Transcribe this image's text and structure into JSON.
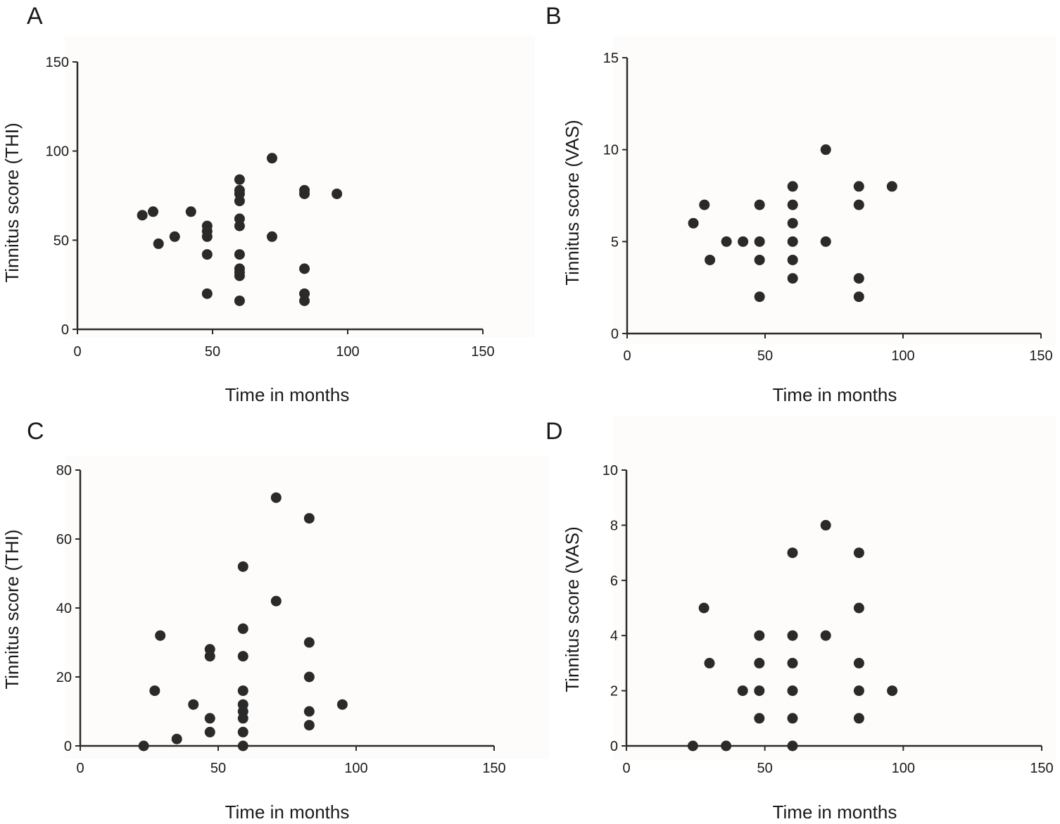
{
  "chart_data": [
    {
      "type": "scatter",
      "panel": "A",
      "xlabel": "Time in months",
      "ylabel": "Tinnitus score (THI)",
      "xlim": [
        0,
        150
      ],
      "ylim": [
        0,
        150
      ],
      "xticks": [
        0,
        50,
        100,
        150
      ],
      "yticks": [
        0,
        50,
        100,
        150
      ],
      "grid": false,
      "points": [
        {
          "x": 24,
          "y": 64
        },
        {
          "x": 28,
          "y": 66
        },
        {
          "x": 30,
          "y": 48
        },
        {
          "x": 36,
          "y": 52
        },
        {
          "x": 42,
          "y": 66
        },
        {
          "x": 48,
          "y": 58
        },
        {
          "x": 48,
          "y": 55
        },
        {
          "x": 48,
          "y": 52
        },
        {
          "x": 48,
          "y": 42
        },
        {
          "x": 48,
          "y": 20
        },
        {
          "x": 60,
          "y": 84
        },
        {
          "x": 60,
          "y": 78
        },
        {
          "x": 60,
          "y": 76
        },
        {
          "x": 60,
          "y": 72
        },
        {
          "x": 60,
          "y": 62
        },
        {
          "x": 60,
          "y": 58
        },
        {
          "x": 60,
          "y": 42
        },
        {
          "x": 60,
          "y": 34
        },
        {
          "x": 60,
          "y": 32
        },
        {
          "x": 60,
          "y": 30
        },
        {
          "x": 60,
          "y": 16
        },
        {
          "x": 72,
          "y": 96
        },
        {
          "x": 72,
          "y": 52
        },
        {
          "x": 84,
          "y": 78
        },
        {
          "x": 84,
          "y": 76
        },
        {
          "x": 84,
          "y": 34
        },
        {
          "x": 84,
          "y": 20
        },
        {
          "x": 84,
          "y": 16
        },
        {
          "x": 96,
          "y": 76
        }
      ]
    },
    {
      "type": "scatter",
      "panel": "B",
      "xlabel": "Time in months",
      "ylabel": "Tinnitus score (VAS)",
      "xlim": [
        0,
        150
      ],
      "ylim": [
        0,
        15
      ],
      "xticks": [
        0,
        50,
        100,
        150
      ],
      "yticks": [
        0,
        5,
        10,
        15
      ],
      "grid": false,
      "points": [
        {
          "x": 24,
          "y": 6
        },
        {
          "x": 28,
          "y": 7
        },
        {
          "x": 30,
          "y": 4
        },
        {
          "x": 36,
          "y": 5
        },
        {
          "x": 42,
          "y": 5
        },
        {
          "x": 48,
          "y": 7
        },
        {
          "x": 48,
          "y": 5
        },
        {
          "x": 48,
          "y": 4
        },
        {
          "x": 48,
          "y": 2
        },
        {
          "x": 60,
          "y": 8
        },
        {
          "x": 60,
          "y": 7
        },
        {
          "x": 60,
          "y": 6
        },
        {
          "x": 60,
          "y": 5
        },
        {
          "x": 60,
          "y": 4
        },
        {
          "x": 60,
          "y": 3
        },
        {
          "x": 72,
          "y": 10
        },
        {
          "x": 72,
          "y": 5
        },
        {
          "x": 84,
          "y": 8
        },
        {
          "x": 84,
          "y": 7
        },
        {
          "x": 84,
          "y": 3
        },
        {
          "x": 84,
          "y": 2
        },
        {
          "x": 96,
          "y": 8
        }
      ]
    },
    {
      "type": "scatter",
      "panel": "C",
      "xlabel": "Time in months",
      "ylabel": "Tinnitus score (THI)",
      "xlim": [
        0,
        150
      ],
      "ylim": [
        0,
        80
      ],
      "xticks": [
        0,
        50,
        100,
        150
      ],
      "yticks": [
        0,
        20,
        40,
        60,
        80
      ],
      "grid": false,
      "points": [
        {
          "x": 23,
          "y": 0
        },
        {
          "x": 27,
          "y": 16
        },
        {
          "x": 29,
          "y": 32
        },
        {
          "x": 35,
          "y": 2
        },
        {
          "x": 41,
          "y": 12
        },
        {
          "x": 47,
          "y": 28
        },
        {
          "x": 47,
          "y": 26
        },
        {
          "x": 47,
          "y": 8
        },
        {
          "x": 47,
          "y": 4
        },
        {
          "x": 59,
          "y": 52
        },
        {
          "x": 59,
          "y": 34
        },
        {
          "x": 59,
          "y": 26
        },
        {
          "x": 59,
          "y": 16
        },
        {
          "x": 59,
          "y": 12
        },
        {
          "x": 59,
          "y": 10
        },
        {
          "x": 59,
          "y": 8
        },
        {
          "x": 59,
          "y": 4
        },
        {
          "x": 59,
          "y": 0
        },
        {
          "x": 71,
          "y": 72
        },
        {
          "x": 71,
          "y": 42
        },
        {
          "x": 83,
          "y": 66
        },
        {
          "x": 83,
          "y": 30
        },
        {
          "x": 83,
          "y": 20
        },
        {
          "x": 83,
          "y": 10
        },
        {
          "x": 83,
          "y": 6
        },
        {
          "x": 95,
          "y": 12
        }
      ]
    },
    {
      "type": "scatter",
      "panel": "D",
      "xlabel": "Time in months",
      "ylabel": "Tinnitus score (VAS)",
      "xlim": [
        0,
        150
      ],
      "ylim": [
        0,
        10
      ],
      "xticks": [
        0,
        50,
        100,
        150
      ],
      "yticks": [
        0,
        2,
        4,
        6,
        8,
        10
      ],
      "grid": false,
      "points": [
        {
          "x": 24,
          "y": 0
        },
        {
          "x": 28,
          "y": 5
        },
        {
          "x": 30,
          "y": 3
        },
        {
          "x": 36,
          "y": 0
        },
        {
          "x": 42,
          "y": 2
        },
        {
          "x": 48,
          "y": 4
        },
        {
          "x": 48,
          "y": 3
        },
        {
          "x": 48,
          "y": 2
        },
        {
          "x": 48,
          "y": 1
        },
        {
          "x": 60,
          "y": 7
        },
        {
          "x": 60,
          "y": 4
        },
        {
          "x": 60,
          "y": 3
        },
        {
          "x": 60,
          "y": 2
        },
        {
          "x": 60,
          "y": 1
        },
        {
          "x": 60,
          "y": 0
        },
        {
          "x": 72,
          "y": 8
        },
        {
          "x": 72,
          "y": 4
        },
        {
          "x": 84,
          "y": 7
        },
        {
          "x": 84,
          "y": 5
        },
        {
          "x": 84,
          "y": 3
        },
        {
          "x": 84,
          "y": 2
        },
        {
          "x": 84,
          "y": 1
        },
        {
          "x": 96,
          "y": 2
        }
      ]
    }
  ]
}
